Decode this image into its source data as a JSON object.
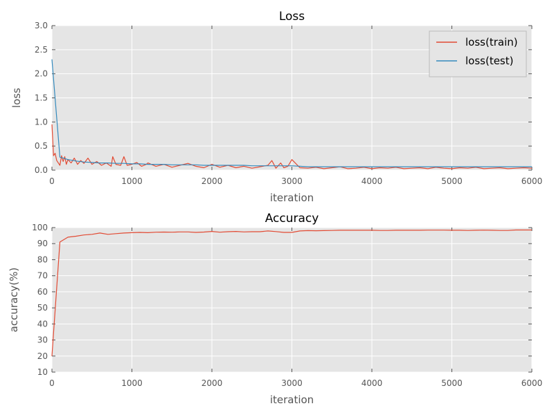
{
  "chart_data": [
    {
      "type": "line",
      "title": "Loss",
      "xlabel": "iteration",
      "ylabel": "loss",
      "xlim": [
        0,
        6000
      ],
      "ylim": [
        0,
        3.0
      ],
      "x_ticks": [
        0,
        1000,
        2000,
        3000,
        4000,
        5000,
        6000
      ],
      "y_ticks": [
        0.0,
        0.5,
        1.0,
        1.5,
        2.0,
        2.5,
        3.0
      ],
      "x_tick_labels": [
        "0",
        "1000",
        "2000",
        "3000",
        "4000",
        "5000",
        "6000"
      ],
      "y_tick_labels": [
        "0.0",
        "0.5",
        "1.0",
        "1.5",
        "2.0",
        "2.5",
        "3.0"
      ],
      "grid": true,
      "legend": "top-right",
      "series": [
        {
          "name": "loss(train)",
          "color": "#e24a33",
          "x": [
            0,
            20,
            40,
            60,
            80,
            100,
            120,
            140,
            160,
            180,
            200,
            240,
            280,
            320,
            360,
            400,
            450,
            500,
            560,
            620,
            680,
            740,
            760,
            800,
            860,
            900,
            940,
            1000,
            1060,
            1120,
            1180,
            1200,
            1300,
            1400,
            1500,
            1600,
            1700,
            1800,
            1900,
            2000,
            2100,
            2200,
            2300,
            2400,
            2500,
            2600,
            2700,
            2750,
            2800,
            2860,
            2900,
            2950,
            3000,
            3100,
            3200,
            3300,
            3400,
            3500,
            3600,
            3700,
            3800,
            3900,
            4000,
            4100,
            4200,
            4300,
            4400,
            4500,
            4600,
            4700,
            4800,
            4900,
            5000,
            5100,
            5200,
            5300,
            5400,
            5500,
            5600,
            5700,
            5800,
            5900,
            6000
          ],
          "y": [
            0.95,
            0.3,
            0.35,
            0.2,
            0.15,
            0.1,
            0.3,
            0.18,
            0.28,
            0.12,
            0.22,
            0.15,
            0.25,
            0.12,
            0.2,
            0.14,
            0.25,
            0.12,
            0.18,
            0.1,
            0.15,
            0.08,
            0.28,
            0.12,
            0.1,
            0.28,
            0.1,
            0.12,
            0.16,
            0.08,
            0.12,
            0.15,
            0.08,
            0.12,
            0.06,
            0.1,
            0.14,
            0.08,
            0.05,
            0.12,
            0.06,
            0.1,
            0.05,
            0.08,
            0.04,
            0.07,
            0.1,
            0.2,
            0.04,
            0.15,
            0.05,
            0.08,
            0.22,
            0.05,
            0.04,
            0.06,
            0.03,
            0.05,
            0.07,
            0.03,
            0.04,
            0.06,
            0.03,
            0.05,
            0.04,
            0.06,
            0.03,
            0.04,
            0.05,
            0.03,
            0.06,
            0.04,
            0.03,
            0.05,
            0.04,
            0.06,
            0.03,
            0.04,
            0.05,
            0.03,
            0.04,
            0.05,
            0.04
          ]
        },
        {
          "name": "loss(test)",
          "color": "#348abd",
          "x": [
            0,
            100,
            200,
            300,
            400,
            500,
            600,
            700,
            800,
            900,
            1000,
            1100,
            1200,
            1300,
            1400,
            1500,
            1600,
            1700,
            1800,
            1900,
            2000,
            2100,
            2200,
            2300,
            2400,
            2500,
            2600,
            2700,
            2800,
            2900,
            3000,
            3100,
            3200,
            3300,
            3400,
            3500,
            3600,
            3700,
            3800,
            3900,
            4000,
            4100,
            4200,
            4300,
            4400,
            4500,
            4600,
            4700,
            4800,
            4900,
            5000,
            5100,
            5200,
            5300,
            5400,
            5500,
            5600,
            5700,
            5800,
            5900,
            6000
          ],
          "y": [
            2.3,
            0.27,
            0.22,
            0.19,
            0.17,
            0.16,
            0.15,
            0.15,
            0.14,
            0.14,
            0.13,
            0.13,
            0.12,
            0.12,
            0.12,
            0.11,
            0.11,
            0.11,
            0.11,
            0.1,
            0.1,
            0.1,
            0.1,
            0.1,
            0.1,
            0.09,
            0.09,
            0.09,
            0.09,
            0.09,
            0.09,
            0.08,
            0.07,
            0.07,
            0.07,
            0.07,
            0.07,
            0.07,
            0.07,
            0.07,
            0.07,
            0.07,
            0.07,
            0.07,
            0.07,
            0.07,
            0.07,
            0.07,
            0.07,
            0.07,
            0.07,
            0.07,
            0.07,
            0.07,
            0.07,
            0.07,
            0.07,
            0.07,
            0.07,
            0.07,
            0.07
          ]
        }
      ]
    },
    {
      "type": "line",
      "title": "Accuracy",
      "xlabel": "iteration",
      "ylabel": "accuracy(%)",
      "xlim": [
        0,
        6000
      ],
      "ylim": [
        10,
        100
      ],
      "x_ticks": [
        0,
        1000,
        2000,
        3000,
        4000,
        5000,
        6000
      ],
      "y_ticks": [
        10,
        20,
        30,
        40,
        50,
        60,
        70,
        80,
        90,
        100
      ],
      "x_tick_labels": [
        "0",
        "1000",
        "2000",
        "3000",
        "4000",
        "5000",
        "6000"
      ],
      "y_tick_labels": [
        "10",
        "20",
        "30",
        "40",
        "50",
        "60",
        "70",
        "80",
        "90",
        "100"
      ],
      "grid": true,
      "series": [
        {
          "color": "#e24a33",
          "x": [
            0,
            100,
            200,
            300,
            400,
            500,
            600,
            700,
            800,
            900,
            1000,
            1100,
            1200,
            1300,
            1400,
            1500,
            1600,
            1700,
            1800,
            1900,
            2000,
            2100,
            2200,
            2300,
            2400,
            2500,
            2600,
            2700,
            2800,
            2900,
            3000,
            3100,
            3200,
            3300,
            3400,
            3500,
            3600,
            3700,
            3800,
            3900,
            4000,
            4100,
            4200,
            4300,
            4400,
            4500,
            4600,
            4700,
            4800,
            4900,
            5000,
            5100,
            5200,
            5300,
            5400,
            5500,
            5600,
            5700,
            5800,
            5900,
            6000
          ],
          "y": [
            20,
            91,
            94,
            94.6,
            95.4,
            95.8,
            96.6,
            95.8,
            96.2,
            96.6,
            96.8,
            97.0,
            96.8,
            97.1,
            97.2,
            97.1,
            97.3,
            97.3,
            97.0,
            97.2,
            97.6,
            97.1,
            97.4,
            97.6,
            97.3,
            97.4,
            97.4,
            97.9,
            97.5,
            97.0,
            97.0,
            97.9,
            98.1,
            98.0,
            98.1,
            98.2,
            98.3,
            98.3,
            98.3,
            98.3,
            98.3,
            98.2,
            98.2,
            98.3,
            98.3,
            98.3,
            98.3,
            98.4,
            98.4,
            98.4,
            98.3,
            98.3,
            98.2,
            98.3,
            98.4,
            98.3,
            98.2,
            98.2,
            98.5,
            98.5,
            98.5
          ]
        }
      ]
    }
  ]
}
